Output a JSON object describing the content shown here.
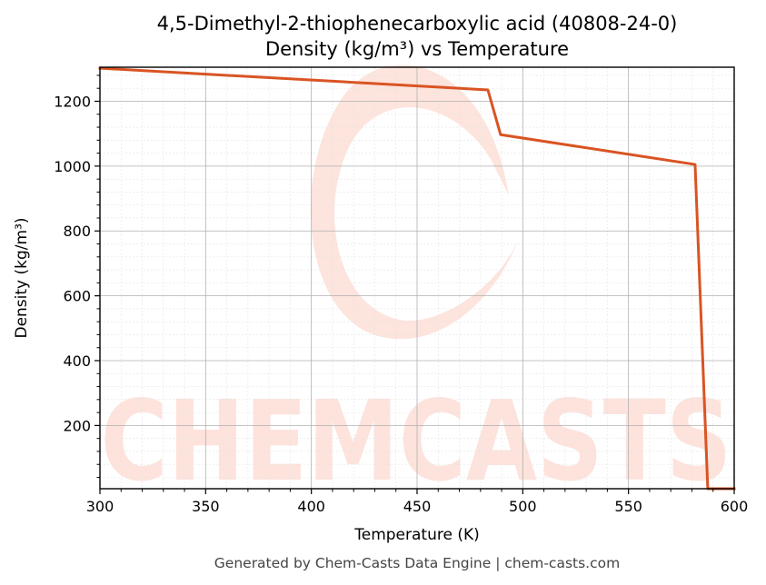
{
  "chart_data": {
    "type": "line",
    "title": "4,5-Dimethyl-2-thiophenecarboxylic acid (40808-24-0)",
    "subtitle": "Density (kg/m³) vs Temperature",
    "xlabel": "Temperature (K)",
    "ylabel": "Density (kg/m³)",
    "xlim": [
      300,
      600
    ],
    "ylim": [
      5,
      1305
    ],
    "x_ticks": [
      300,
      350,
      400,
      450,
      500,
      550,
      600
    ],
    "y_ticks": [
      200,
      400,
      600,
      800,
      1000,
      1200
    ],
    "grid": true,
    "series": [
      {
        "color": "#d95423",
        "x": [
          300,
          483.5,
          489.5,
          581.5,
          587.5,
          600
        ],
        "y": [
          1302,
          1235,
          1097,
          1005,
          5,
          5
        ]
      }
    ]
  },
  "watermark": {
    "text": "CHEMCASTS"
  },
  "footer": "Generated by Chem-Casts Data Engine | chem-casts.com"
}
